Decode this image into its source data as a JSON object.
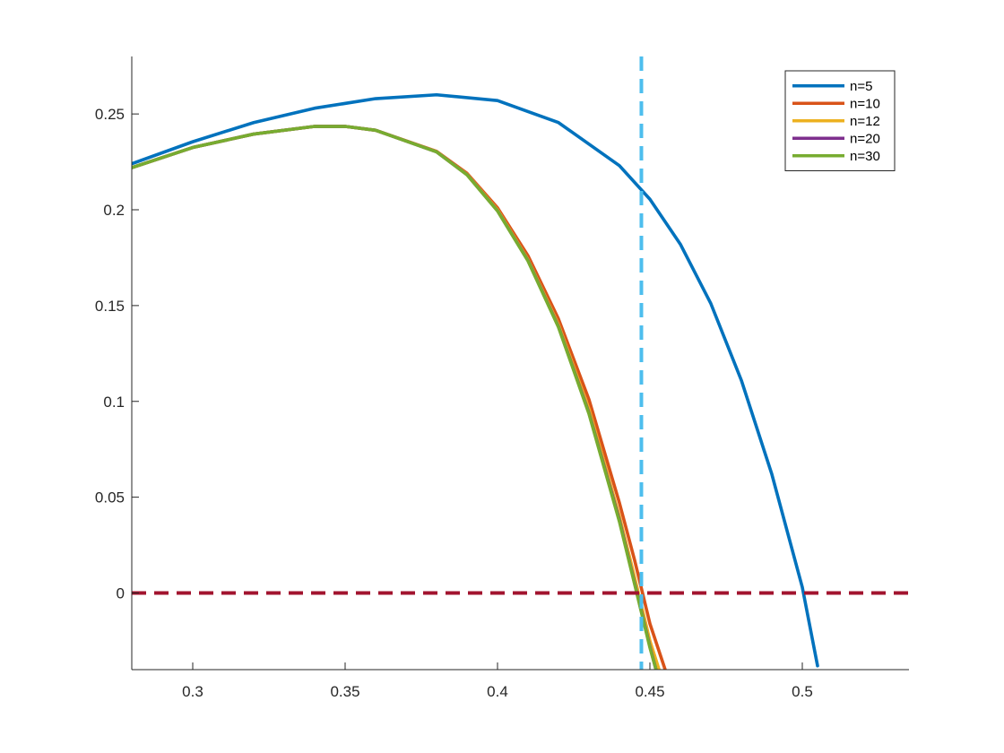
{
  "chart_data": {
    "type": "line",
    "title": "",
    "xlabel": "",
    "ylabel": "",
    "xlim": [
      0.28,
      0.535
    ],
    "ylim": [
      -0.04,
      0.28
    ],
    "grid": false,
    "legend_placement": "top-right",
    "x_ticks": [
      {
        "value": 0.3,
        "label": "0.3"
      },
      {
        "value": 0.35,
        "label": "0.35"
      },
      {
        "value": 0.4,
        "label": "0.4"
      },
      {
        "value": 0.45,
        "label": "0.45"
      },
      {
        "value": 0.5,
        "label": "0.5"
      }
    ],
    "y_ticks": [
      {
        "value": 0,
        "label": "0"
      },
      {
        "value": 0.05,
        "label": "0.05"
      },
      {
        "value": 0.1,
        "label": "0.1"
      },
      {
        "value": 0.15,
        "label": "0.15"
      },
      {
        "value": 0.2,
        "label": "0.2"
      },
      {
        "value": 0.25,
        "label": "0.25"
      }
    ],
    "series": [
      {
        "name": "n=5",
        "color": "#0072BD",
        "x": [
          0.28,
          0.3,
          0.32,
          0.34,
          0.36,
          0.38,
          0.4,
          0.42,
          0.44,
          0.45,
          0.46,
          0.47,
          0.48,
          0.49,
          0.5,
          0.505
        ],
        "y": [
          0.224,
          0.2355,
          0.2455,
          0.253,
          0.258,
          0.26,
          0.257,
          0.2455,
          0.223,
          0.2055,
          0.182,
          0.151,
          0.111,
          0.062,
          0.003,
          -0.038
        ]
      },
      {
        "name": "n=10",
        "color": "#D95319",
        "x": [
          0.28,
          0.3,
          0.32,
          0.34,
          0.35,
          0.36,
          0.38,
          0.39,
          0.4,
          0.41,
          0.42,
          0.43,
          0.44,
          0.445,
          0.45,
          0.455
        ],
        "y": [
          0.222,
          0.2325,
          0.2395,
          0.2435,
          0.2435,
          0.2415,
          0.2305,
          0.219,
          0.201,
          0.176,
          0.143,
          0.101,
          0.047,
          0.017,
          -0.016,
          -0.04
        ]
      },
      {
        "name": "n=12",
        "color": "#EDB120",
        "x": [
          0.28,
          0.3,
          0.32,
          0.34,
          0.35,
          0.36,
          0.38,
          0.39,
          0.4,
          0.41,
          0.42,
          0.43,
          0.44,
          0.445,
          0.45,
          0.453
        ],
        "y": [
          0.222,
          0.2325,
          0.2395,
          0.2435,
          0.2435,
          0.2415,
          0.2303,
          0.2185,
          0.2,
          0.174,
          0.14,
          0.096,
          0.04,
          0.008,
          -0.025,
          -0.04
        ]
      },
      {
        "name": "n=20",
        "color": "#7E2F8E",
        "x": [
          0.28,
          0.3,
          0.32,
          0.34,
          0.35,
          0.36,
          0.38,
          0.39,
          0.4,
          0.41,
          0.42,
          0.43,
          0.44,
          0.445,
          0.45,
          0.452
        ],
        "y": [
          0.222,
          0.2325,
          0.2395,
          0.2435,
          0.2435,
          0.2415,
          0.2302,
          0.2183,
          0.1995,
          0.1735,
          0.139,
          0.094,
          0.038,
          0.005,
          -0.028,
          -0.04
        ]
      },
      {
        "name": "n=30",
        "color": "#77AC30",
        "x": [
          0.28,
          0.3,
          0.32,
          0.34,
          0.35,
          0.36,
          0.38,
          0.39,
          0.4,
          0.41,
          0.42,
          0.43,
          0.44,
          0.445,
          0.45,
          0.452
        ],
        "y": [
          0.222,
          0.2325,
          0.2395,
          0.2435,
          0.2435,
          0.2415,
          0.2302,
          0.2182,
          0.1994,
          0.1733,
          0.1387,
          0.0935,
          0.0372,
          0.0045,
          -0.0285,
          -0.04
        ]
      }
    ],
    "reference_lines": [
      {
        "orientation": "vertical",
        "value": 0.4472,
        "color": "#4DBEEE",
        "style": "dashed"
      },
      {
        "orientation": "horizontal",
        "value": 0,
        "color": "#A2142F",
        "style": "dashed"
      }
    ]
  }
}
